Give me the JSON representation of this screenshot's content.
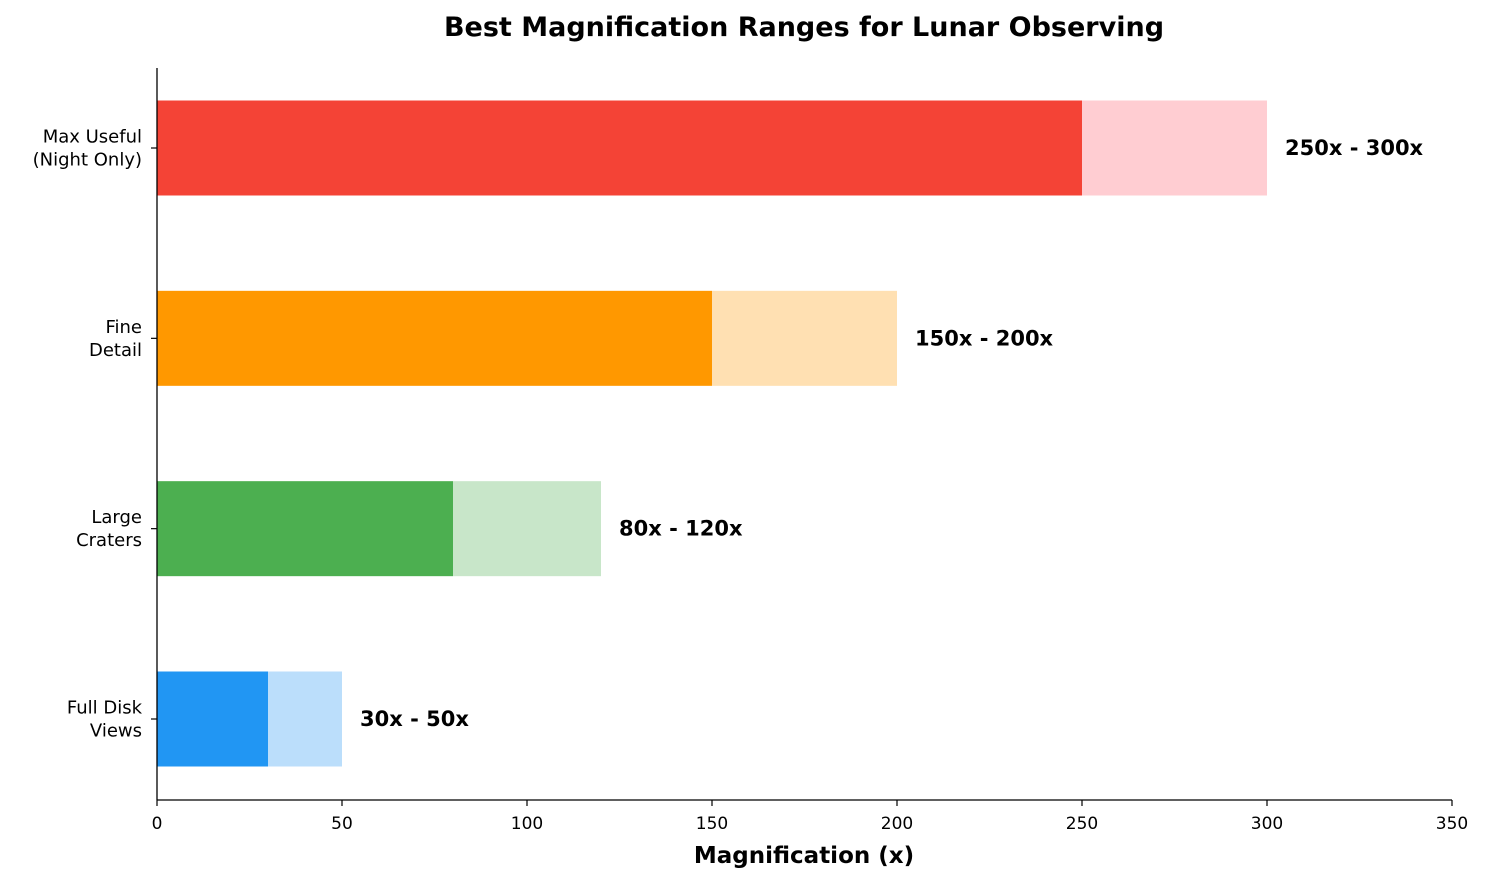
{
  "chart_data": {
    "type": "bar",
    "orientation": "horizontal",
    "title": "Best Magnification Ranges for Lunar Observing",
    "xlabel": "Magnification (x)",
    "ylabel": "",
    "xlim": [
      0,
      350
    ],
    "xticks": [
      0,
      50,
      100,
      150,
      200,
      250,
      300,
      350
    ],
    "grid": false,
    "categories": [
      {
        "lines": [
          "Full Disk",
          "Views"
        ],
        "low": 30,
        "high": 50,
        "range_label": "30x - 50x",
        "color": "#2196F3",
        "light_color": "#BBDEFB"
      },
      {
        "lines": [
          "Large",
          "Craters"
        ],
        "low": 80,
        "high": 120,
        "range_label": "80x - 120x",
        "color": "#4CAF50",
        "light_color": "#C8E6C9"
      },
      {
        "lines": [
          "Fine",
          "Detail"
        ],
        "low": 150,
        "high": 200,
        "range_label": "150x - 200x",
        "color": "#FF9800",
        "light_color": "#FFE0B2"
      },
      {
        "lines": [
          "Max Useful",
          "(Night Only)"
        ],
        "low": 250,
        "high": 300,
        "range_label": "250x - 300x",
        "color": "#F44336",
        "light_color": "#FFCDD2"
      }
    ]
  }
}
